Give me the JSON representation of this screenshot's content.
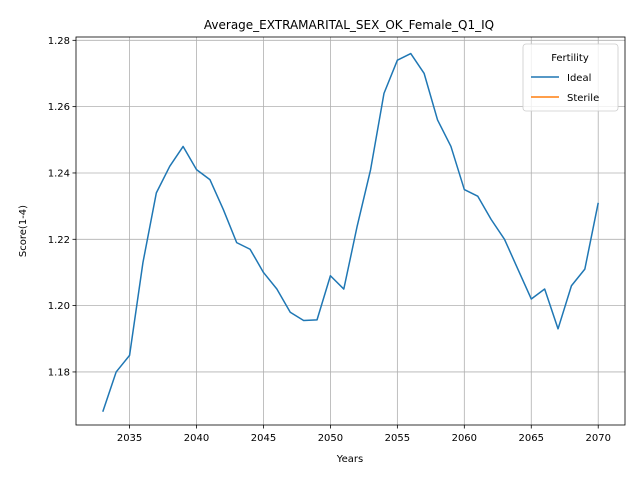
{
  "chart_data": {
    "type": "line",
    "title": "Average_EXTRAMARITAL_SEX_OK_Female_Q1_IQ",
    "xlabel": "Years",
    "ylabel": "Score(1-4)",
    "xlim": [
      2031,
      2072
    ],
    "ylim": [
      1.164,
      1.281
    ],
    "xticks": [
      2035,
      2040,
      2045,
      2050,
      2055,
      2060,
      2065,
      2070
    ],
    "yticks": [
      1.18,
      1.2,
      1.22,
      1.24,
      1.26,
      1.28
    ],
    "grid": true,
    "legend": {
      "title": "Fertility",
      "placement": "top-right"
    },
    "series": [
      {
        "name": "Ideal",
        "color": "#1f77b4",
        "x": [
          2033,
          2034,
          2035,
          2036,
          2037,
          2038,
          2039,
          2040,
          2041,
          2042,
          2043,
          2044,
          2045,
          2046,
          2047,
          2048,
          2049,
          2050,
          2051,
          2052,
          2053,
          2054,
          2055,
          2056,
          2057,
          2058,
          2059,
          2060,
          2061,
          2062,
          2063,
          2064,
          2065,
          2066,
          2067,
          2068,
          2069,
          2070
        ],
        "values": [
          1.168,
          1.18,
          1.185,
          1.213,
          1.234,
          1.242,
          1.248,
          1.241,
          1.238,
          1.229,
          1.219,
          1.217,
          1.21,
          1.205,
          1.198,
          1.1955,
          1.1957,
          1.209,
          1.205,
          1.224,
          1.241,
          1.264,
          1.274,
          1.276,
          1.27,
          1.256,
          1.248,
          1.235,
          1.233,
          1.226,
          1.22,
          1.211,
          1.202,
          1.205,
          1.193,
          1.206,
          1.211,
          1.231
        ]
      },
      {
        "name": "Sterile",
        "color": "#ff7f0e",
        "x": [],
        "values": []
      }
    ]
  }
}
